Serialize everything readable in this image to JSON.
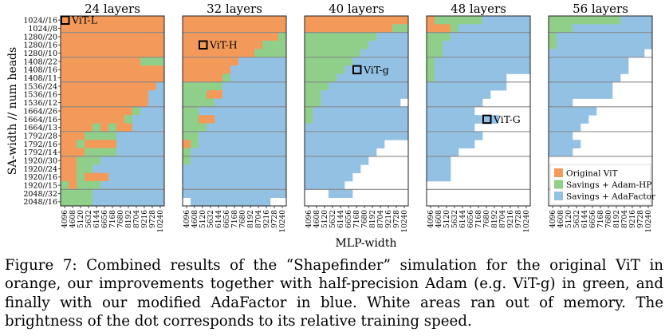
{
  "chart_data": {
    "type": "heatmap",
    "ylabel": "SA-width // num heads",
    "xlabel": "MLP-width",
    "y_categories": [
      "1024//16",
      "1024//8",
      "1280//20",
      "1280//16",
      "1280//10",
      "1408//22",
      "1408//16",
      "1408//11",
      "1536//24",
      "1536//16",
      "1536//12",
      "1664//26",
      "1664//16",
      "1664//13",
      "1792//28",
      "1792//16",
      "1792//14",
      "1920//30",
      "1920//24",
      "1920//16",
      "1920//15",
      "2048//32",
      "2048//16"
    ],
    "x_categories": [
      "4096",
      "4608",
      "5120",
      "5632",
      "6144",
      "6656",
      "7168",
      "7680",
      "8192",
      "8704",
      "9216",
      "9728",
      "10240"
    ],
    "legend": {
      "position": "lower-right",
      "entries": [
        "Original ViT",
        "Savings + Adam-HP",
        "Savings + AdaFactor"
      ]
    },
    "colors": {
      "orange": "#f39a5a",
      "green": "#8fcf8a",
      "blue": "#93c1e4",
      "white": "#ffffff"
    },
    "panels": [
      {
        "title": "24 layers",
        "marker": {
          "label": "ViT-L",
          "row": 0,
          "col": 0
        },
        "rows": [
          "OOOOOOOOOOOOO",
          "OOOOOOOOOOOOO",
          "OOOOOOOOOOOOO",
          "OOOOOOOOOOOOO",
          "OOOOOOOOOOOOO",
          "OOOOOOOOOOGGG",
          "OOOOOOOOOOOOO",
          "OOOOOOOOOOOOO",
          "OOOOOOOOOOOOB",
          "OOOOOOOOOOOBB",
          "OOOOOOOOOOOBB",
          "OOOOOOOOOGBBB",
          "OOOOOOOOGBBBB",
          "OOOOGOGOOBBBB",
          "OOOGGGGBBBBBB",
          "OOGOOOOBBBBBB",
          "OOOGGGGBBBBBB",
          "OOGGGBBBBBBBB",
          "OOGGBBBBBBBBB",
          "OOGOOOBBBBBBB",
          "GOGGGBBBBBBBB",
          "GGGGBBBBBBBBB",
          "GGGGBBBBBBBBB"
        ]
      },
      {
        "title": "32 layers",
        "marker": {
          "label": "ViT-H",
          "row": 3,
          "col": 2
        },
        "rows": [
          "OOOOOOOOOOOOO",
          "OOOOOOOOOOOOO",
          "OOOOOOOOOOOOG",
          "OOOOOOOOOOGGG",
          "OOOOOOOOOGGGG",
          "OOOOOOOBBBBBB",
          "OOOOOOBBBBBBB",
          "OOOOOGBBBBBBB",
          "GGGGGBBBBBBBB",
          "GGGOOBBBBBBBB",
          "GGGGBBBBBBBBB",
          "GGBBBBBBBBBBB",
          "GGOOBBBBBBBBB",
          "GGGBBBBBBBBBB",
          "GGBBBBBBBBBBB",
          "OGBBBBBBBBBBB",
          "GBBBBBBBBBBBB",
          "GBBBBBBBBBBBB",
          "BBBBBBBBBBBBB",
          "BBBBBBBBBBBBB",
          "BBBBBBBBBBBBB",
          "BBBBBBBBBBBBB",
          "WBBBBBBBBBBWW"
        ]
      },
      {
        "title": "40 layers",
        "marker": {
          "label": "ViT-g",
          "row": 6,
          "col": 6
        },
        "rows": [
          "OOOOOOOOOOOOO",
          "OOOOOOOOOOOGG",
          "GGGGGGGGGBBBB",
          "GGGGGGGGBBBBB",
          "GGGGGGGBBBBBB",
          "GGGGGGBBBBBBB",
          "GGGGGBBBBBBBB",
          "GGGGBBBBBBBBB",
          "GGGBBBBBBBBBB",
          "GGBBBBBBBBBBB",
          "GGBBBBBBBBBBW",
          "GBBBBBBBBBBBB",
          "GBBBBBBBBBBBB",
          "BBBBBBBBBBBBB",
          "BBBBBBBBBBBBB",
          "BBBBBBBBBBWWW",
          "BBBBBBBBBWWWW",
          "BBBBBBBBWWWWW",
          "BBBBBBBWWWWWW",
          "BBBBBBWWWWWWW",
          "BBBBBWWWWWWWW",
          "WWWBBBWWWWWWW",
          "WWWWWWWWWWWWW"
        ]
      },
      {
        "title": "48 layers",
        "marker": {
          "label": "ViT-G",
          "row": 12,
          "col": 7
        },
        "rows": [
          "OGGGGGGBBBBBB",
          "OOOGBBBBBBBBB",
          "GGGBBBBBBBBBB",
          "GGBBBBBBBBBBB",
          "GGBBBBBBBBBBB",
          "GBBBBBBBBBBBB",
          "GBBBBBBBBBBBB",
          "GBBBBBBBBBWWW",
          "BBBBBBBBBBWWW",
          "BBBBBBBBWWWWW",
          "BBBBBBBWWWWWW",
          "BBBBBBWWWWWWW",
          "BBBBBBBBBWWWW",
          "BBBBBBWWWWWWW",
          "BBBBBBBWWWWWW",
          "BBBBBBWWWWWWW",
          "BBBBWWWWWWWWW",
          "BBBWWWWWWWWWW",
          "BBBWWWWWWWWWW",
          "BBBWWWWWWWWWW",
          "WWWWWWWWWWWWW",
          "WWWWWWWWWWWWW",
          "WWWWWWWWWWWWW"
        ]
      },
      {
        "title": "56 layers",
        "marker": null,
        "rows": [
          "GGGGGGGGGBBBB",
          "GGGBBBBBBBBBB",
          "GBBBBBBBBBBBB",
          "GBBBBBBBBBBBB",
          "BBBBBBBBBBBBW",
          "BBBBBBBBBBWWW",
          "BBBBBBBBBBWWW",
          "BBBBBBBBBWWWW",
          "BBBBBBBBWWWWW",
          "BBBBBBBBWWWWW",
          "BBBWWWWWWWWWW",
          "BBBBBBWWWWWWW",
          "BBBBBWWWWWWWW",
          "BBBBWWWWWWWWW",
          "BBBWWWWWWWWWW",
          "BBBBWWWWWWWWW",
          "BBBWWWWWWWWWW",
          "WWWWWWWWWWWWW",
          "WWWWWWWWWWWWW",
          "WWWWWWWWWWWWW",
          "WWWWWWWWWWWWW",
          "WWWWWWWWWWWWW",
          "WWWWWWWWWWWWW"
        ]
      }
    ]
  },
  "caption": {
    "label": "Figure 7:",
    "text_a": " Combined results of the “Shapefinder” simulation for the original ViT in orange, our improvements together with half-precision Adam (e.g. ",
    "text_b": "ViT-g)",
    "text_c": " in green, and finally with our modified AdaFactor in blue. White areas ran out of memory. The brightness of the dot corresponds to its relative training speed."
  }
}
